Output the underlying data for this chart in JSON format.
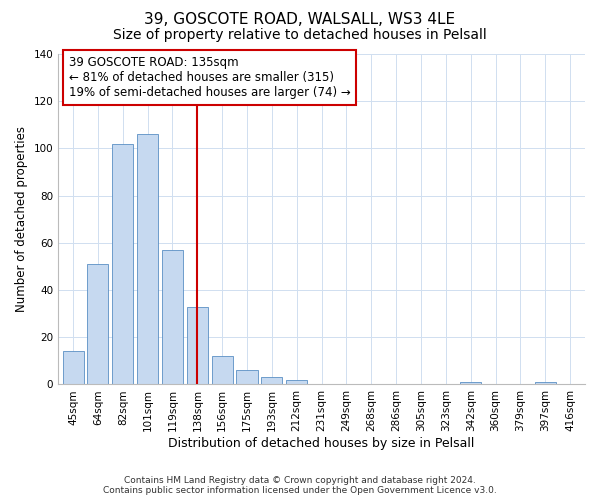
{
  "title": "39, GOSCOTE ROAD, WALSALL, WS3 4LE",
  "subtitle": "Size of property relative to detached houses in Pelsall",
  "xlabel": "Distribution of detached houses by size in Pelsall",
  "ylabel": "Number of detached properties",
  "bar_labels": [
    "45sqm",
    "64sqm",
    "82sqm",
    "101sqm",
    "119sqm",
    "138sqm",
    "156sqm",
    "175sqm",
    "193sqm",
    "212sqm",
    "231sqm",
    "249sqm",
    "268sqm",
    "286sqm",
    "305sqm",
    "323sqm",
    "342sqm",
    "360sqm",
    "379sqm",
    "397sqm",
    "416sqm"
  ],
  "bar_values": [
    14,
    51,
    102,
    106,
    57,
    33,
    12,
    6,
    3,
    2,
    0,
    0,
    0,
    0,
    0,
    0,
    1,
    0,
    0,
    1,
    0
  ],
  "bar_color": "#c6d9f0",
  "bar_edge_color": "#5a8fc4",
  "vline_x": 5.0,
  "vline_color": "#cc0000",
  "annotation_line1": "39 GOSCOTE ROAD: 135sqm",
  "annotation_line2": "← 81% of detached houses are smaller (315)",
  "annotation_line3": "19% of semi-detached houses are larger (74) →",
  "annotation_box_edge": "#cc0000",
  "ylim": [
    0,
    140
  ],
  "yticks": [
    0,
    20,
    40,
    60,
    80,
    100,
    120,
    140
  ],
  "footer_line1": "Contains HM Land Registry data © Crown copyright and database right 2024.",
  "footer_line2": "Contains public sector information licensed under the Open Government Licence v3.0.",
  "title_fontsize": 11,
  "subtitle_fontsize": 10,
  "xlabel_fontsize": 9,
  "ylabel_fontsize": 8.5,
  "tick_fontsize": 7.5,
  "annot_fontsize": 8.5,
  "footer_fontsize": 6.5,
  "background_color": "#ffffff",
  "grid_color": "#d0dff0"
}
